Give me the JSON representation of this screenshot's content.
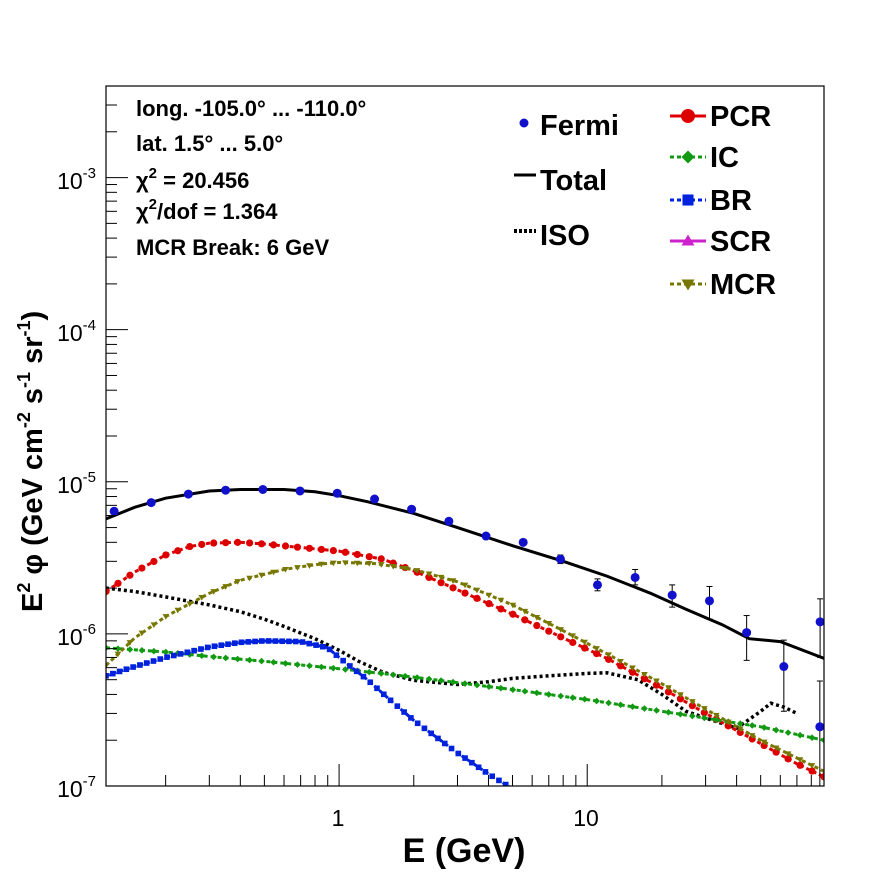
{
  "chart_data": {
    "type": "line",
    "xlabel": "E (GeV)",
    "ylabel": {
      "main": "E",
      "main_sup": "2",
      "phi": "φ",
      "unit_a": " (GeV cm",
      "unit_a_sup": "-2",
      "unit_b": " s",
      "unit_b_sup": "-1",
      "unit_c": " sr",
      "unit_c_sup": "-1",
      "unit_d": ")"
    },
    "xscale": "log",
    "yscale": "log",
    "xlim": [
      0.115,
      90
    ],
    "ylim": [
      1e-07,
      0.004
    ],
    "x_ticklabels": [
      {
        "value": 1,
        "label": "1"
      },
      {
        "value": 10,
        "label": "10"
      }
    ],
    "y_ticklabels": [
      {
        "value": 1e-07,
        "base": "10",
        "exp": "-7"
      },
      {
        "value": 1e-06,
        "base": "10",
        "exp": "-6"
      },
      {
        "value": 1e-05,
        "base": "10",
        "exp": "-5"
      },
      {
        "value": 0.0001,
        "base": "10",
        "exp": "-4"
      },
      {
        "value": 0.001,
        "base": "10",
        "exp": "-3"
      }
    ],
    "info": {
      "line1": "long. -105.0° ... -110.0°",
      "line2": "lat. 1.5° ... 5.0°",
      "chi": "χ",
      "chi_sup": "2",
      "chi2_value": " = 20.456",
      "dof_label": "/dof = 1.364",
      "mcr_break": "MCR Break:  6 GeV"
    },
    "legend_left": [
      {
        "label": "Fermi",
        "key": "fermi"
      },
      {
        "label": "Total",
        "key": "total"
      },
      {
        "label": "ISO",
        "key": "iso"
      }
    ],
    "legend_right": [
      {
        "label": "PCR",
        "key": "pcr"
      },
      {
        "label": "IC",
        "key": "ic"
      },
      {
        "label": "BR",
        "key": "br"
      },
      {
        "label": "SCR",
        "key": "scr"
      },
      {
        "label": "MCR",
        "key": "mcr"
      }
    ],
    "colors": {
      "fermi": "#1111cc",
      "total": "#000000",
      "iso": "#000000",
      "pcr": "#dd0000",
      "ic": "#119911",
      "br": "#0022dd",
      "scr": "#cc22cc",
      "mcr": "#777700"
    },
    "fermi": {
      "x": [
        0.124,
        0.175,
        0.247,
        0.349,
        0.493,
        0.696,
        0.983,
        1.39,
        1.96,
        2.77,
        3.91,
        5.52,
        7.8,
        11.0,
        15.6,
        22.0,
        31.1,
        43.9,
        62.0,
        86.8
      ],
      "y": [
        6.4e-06,
        7.3e-06,
        8.3e-06,
        8.8e-06,
        8.9e-06,
        8.7e-06,
        8.4e-06,
        7.7e-06,
        6.6e-06,
        5.5e-06,
        4.4e-06,
        4e-06,
        3.1e-06,
        2.1e-06,
        2.35e-06,
        1.8e-06,
        1.65e-06,
        1.02e-06,
        6.1e-07,
        1.2e-06
      ],
      "yerr_lo": [
        1e-07,
        1e-07,
        1e-07,
        1e-07,
        1e-07,
        1e-07,
        1e-07,
        1e-07,
        1e-07,
        1e-07,
        1e-07,
        1e-07,
        2e-07,
        1.8e-07,
        2.5e-07,
        3e-07,
        4e-07,
        3.5e-07,
        3e-07,
        5e-07
      ],
      "yerr_hi": [
        1e-07,
        1e-07,
        1e-07,
        1e-07,
        1e-07,
        1e-07,
        1e-07,
        1e-07,
        1e-07,
        1e-07,
        1e-07,
        1e-07,
        2e-07,
        2e-07,
        3e-07,
        3e-07,
        4e-07,
        3e-07,
        3e-07,
        5e-07
      ],
      "extra_point": {
        "x": 62.0,
        "y": 2.45e-07,
        "y_hi": 4.9e-07,
        "y_lo": 1e-07
      }
    },
    "series": [
      {
        "key": "total",
        "x": [
          0.115,
          0.15,
          0.2,
          0.3,
          0.4,
          0.6,
          0.8,
          1.0,
          1.3,
          2.0,
          3.0,
          5.0,
          8.0,
          12.0,
          18.0,
          25.0,
          35.0,
          45.0,
          60.0,
          90.0
        ],
        "y": [
          5.7e-06,
          6.8e-06,
          7.8e-06,
          8.7e-06,
          8.9e-06,
          8.9e-06,
          8.6e-06,
          8.1e-06,
          7.4e-06,
          6.2e-06,
          5e-06,
          3.8e-06,
          3e-06,
          2.4e-06,
          1.85e-06,
          1.45e-06,
          1.15e-06,
          9.3e-07,
          8.9e-07,
          6.9e-07
        ]
      },
      {
        "key": "iso",
        "x": [
          0.115,
          0.15,
          0.2,
          0.3,
          0.4,
          0.5,
          0.6,
          0.8,
          1.0,
          1.2,
          1.5,
          2.0,
          3.0,
          4.0,
          5.0,
          7.0,
          10.0,
          12.0,
          16.0,
          20.0,
          25.0,
          30.0,
          40.0,
          50.0,
          55.0,
          62.0,
          70.0
        ],
        "y": [
          2e-06,
          1.9e-06,
          1.75e-06,
          1.55e-06,
          1.4e-06,
          1.25e-06,
          1.12e-06,
          9.3e-07,
          7.8e-07,
          6.6e-07,
          5.6e-07,
          4.95e-07,
          4.65e-07,
          4.85e-07,
          5.1e-07,
          5.3e-07,
          5.5e-07,
          5.55e-07,
          5e-07,
          4e-07,
          3.1e-07,
          2.8e-07,
          2.4e-07,
          3.1e-07,
          3.5e-07,
          3.3e-07,
          3e-07
        ]
      },
      {
        "key": "pcr",
        "x": [
          0.115,
          0.15,
          0.2,
          0.25,
          0.3,
          0.4,
          0.5,
          0.7,
          1.0,
          1.5,
          2.0,
          3.0,
          5.0,
          8.0,
          12.0,
          20.0,
          30.0,
          50.0,
          70.0,
          90.0
        ],
        "y": [
          1.9e-06,
          2.55e-06,
          3.3e-06,
          3.75e-06,
          3.95e-06,
          4e-06,
          3.9e-06,
          3.7e-06,
          3.5e-06,
          3.1e-06,
          2.6e-06,
          1.95e-06,
          1.35e-06,
          9.4e-07,
          6.9e-07,
          4.4e-07,
          3e-07,
          1.9e-07,
          1.4e-07,
          1.15e-07
        ]
      },
      {
        "key": "ic",
        "x": [
          0.115,
          0.2,
          0.3,
          0.5,
          1.0,
          2.0,
          5.0,
          10.0,
          20.0,
          50.0,
          90.0
        ],
        "y": [
          8.1e-07,
          7.6e-07,
          7.1e-07,
          6.6e-07,
          5.9e-07,
          5.2e-07,
          4.3e-07,
          3.7e-07,
          3.1e-07,
          2.45e-07,
          2e-07
        ]
      },
      {
        "key": "br",
        "x": [
          0.115,
          0.15,
          0.2,
          0.3,
          0.4,
          0.5,
          0.7,
          0.9,
          1.0,
          1.3,
          1.6,
          2.0,
          3.0,
          4.0,
          5.0
        ],
        "y": [
          5.3e-07,
          6.1e-07,
          7e-07,
          8.2e-07,
          8.8e-07,
          9e-07,
          8.9e-07,
          8.1e-07,
          7e-07,
          5e-07,
          3.7e-07,
          2.7e-07,
          1.65e-07,
          1.2e-07,
          9.6e-08
        ]
      },
      {
        "key": "mcr",
        "x": [
          0.115,
          0.15,
          0.2,
          0.3,
          0.4,
          0.6,
          0.8,
          1.0,
          1.4,
          2.0,
          3.0,
          5.0,
          8.0,
          12.0,
          20.0,
          30.0,
          50.0,
          90.0
        ],
        "y": [
          6.2e-07,
          9.4e-07,
          1.3e-06,
          1.85e-06,
          2.25e-06,
          2.65e-06,
          2.85e-06,
          2.95e-06,
          2.9e-06,
          2.65e-06,
          2.2e-06,
          1.55e-06,
          1.05e-06,
          7.4e-07,
          4.7e-07,
          3.2e-07,
          2e-07,
          1.25e-07
        ]
      }
    ]
  }
}
